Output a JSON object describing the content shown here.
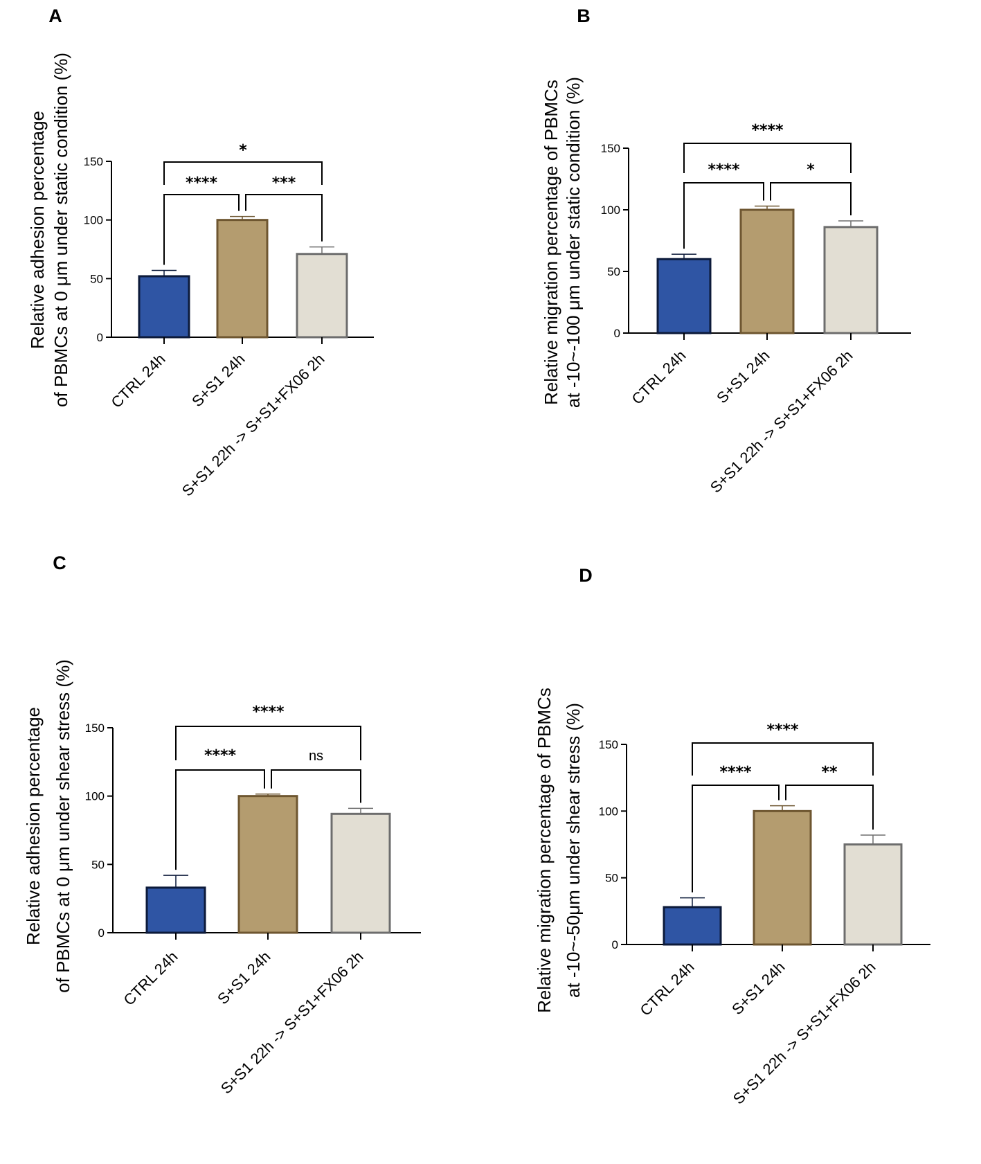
{
  "colors": {
    "ctrl_fill": "#2f55a4",
    "ctrl_stroke": "#0c1a3a",
    "s1_fill": "#b49c6f",
    "s1_stroke": "#6e5630",
    "fx_fill": "#e2ded3",
    "fx_stroke": "#6d6d6d"
  },
  "chart_data": [
    {
      "panel": "A",
      "type": "bar",
      "ylabel_lines": [
        "Relative adhesion percentage",
        "of PBMCs at 0 μm under static condition (%)"
      ],
      "categories": [
        "CTRL 24h",
        "S+S1 24h",
        "S+S1 22h -> S+S1+FX06 2h"
      ],
      "values": [
        52,
        100,
        71
      ],
      "errors": [
        5,
        3,
        6
      ],
      "ylim": [
        0,
        150
      ],
      "yticks": [
        0,
        50,
        100,
        150
      ],
      "ytick_labels": [
        "0",
        "50",
        "100",
        "150"
      ],
      "comparisons": [
        {
          "from": 0,
          "to": 1,
          "label": "****"
        },
        {
          "from": 1,
          "to": 2,
          "label": "***"
        },
        {
          "from": 0,
          "to": 2,
          "label": "*"
        }
      ]
    },
    {
      "panel": "B",
      "type": "bar",
      "ylabel_lines": [
        "Relative migration percentage of PBMCs",
        "at -10~-100 μm under static condition (%)"
      ],
      "categories": [
        "CTRL 24h",
        "S+S1 24h",
        "S+S1 22h -> S+S1+FX06 2h"
      ],
      "values": [
        60,
        100,
        86
      ],
      "errors": [
        4,
        3,
        5
      ],
      "ylim": [
        0,
        150
      ],
      "yticks": [
        0,
        50,
        100,
        150
      ],
      "ytick_labels": [
        "0",
        "50",
        "100",
        "150"
      ],
      "comparisons": [
        {
          "from": 0,
          "to": 1,
          "label": "****"
        },
        {
          "from": 1,
          "to": 2,
          "label": "*"
        },
        {
          "from": 0,
          "to": 2,
          "label": "****"
        }
      ]
    },
    {
      "panel": "C",
      "type": "bar",
      "ylabel_lines": [
        "Relative adhesion percentage",
        "of PBMCs at 0 μm under shear stress (%)"
      ],
      "categories": [
        "CTRL 24h",
        "S+S1 24h",
        "S+S1 22h -> S+S1+FX06 2h"
      ],
      "values": [
        33,
        100,
        87
      ],
      "errors": [
        9,
        1.5,
        4
      ],
      "ylim": [
        0,
        150
      ],
      "yticks": [
        0,
        50,
        100,
        150
      ],
      "ytick_labels": [
        "0",
        "50",
        "100",
        "150"
      ],
      "comparisons": [
        {
          "from": 0,
          "to": 1,
          "label": "****"
        },
        {
          "from": 1,
          "to": 2,
          "label": "ns"
        },
        {
          "from": 0,
          "to": 2,
          "label": "****"
        }
      ]
    },
    {
      "panel": "D",
      "type": "bar",
      "ylabel_lines": [
        "Relative migration percentage of PBMCs",
        "at -10~-50μm under shear stress (%)"
      ],
      "categories": [
        "CTRL 24h",
        "S+S1 24h",
        "S+S1 22h -> S+S1+FX06 2h"
      ],
      "values": [
        28,
        100,
        75
      ],
      "errors": [
        7,
        4,
        7
      ],
      "ylim": [
        0,
        150
      ],
      "yticks": [
        0,
        50,
        100,
        150
      ],
      "ytick_labels": [
        "0",
        "50",
        "100",
        "150"
      ],
      "comparisons": [
        {
          "from": 0,
          "to": 1,
          "label": "****"
        },
        {
          "from": 1,
          "to": 2,
          "label": "**"
        },
        {
          "from": 0,
          "to": 2,
          "label": "****"
        }
      ]
    }
  ]
}
